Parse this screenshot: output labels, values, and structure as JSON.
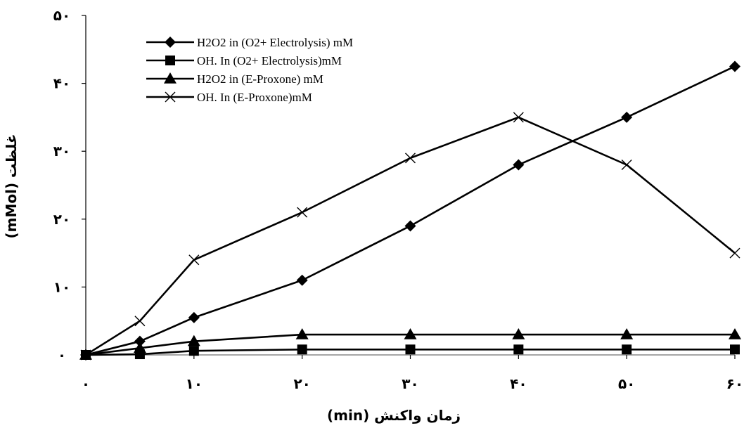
{
  "chart_data": {
    "type": "line",
    "xlabel": "زمان واکنش (min)",
    "ylabel": "غلظت (mMol)",
    "xlim": [
      0,
      60
    ],
    "ylim": [
      0,
      50
    ],
    "x_ticks": [
      0,
      10,
      20,
      30,
      40,
      50,
      60
    ],
    "y_ticks": [
      0,
      10,
      20,
      30,
      40,
      50
    ],
    "x_tick_labels": [
      "۰",
      "۱۰",
      "۲۰",
      "۳۰",
      "۴۰",
      "۵۰",
      "۶۰"
    ],
    "y_tick_labels": [
      "۰",
      "۱۰",
      "۲۰",
      "۳۰",
      "۴۰",
      "۵۰"
    ],
    "grid": false,
    "legend_position": "top-left",
    "series": [
      {
        "name": "H2O2 in (O2+ Electrolysis) mM",
        "marker": "diamond",
        "x": [
          0,
          5,
          10,
          20,
          30,
          40,
          50,
          60
        ],
        "values": [
          0,
          2,
          5.5,
          11,
          19,
          28,
          35,
          42.5
        ]
      },
      {
        "name": "OH. In (O2+ Electrolysis)mM",
        "marker": "square",
        "x": [
          0,
          5,
          10,
          20,
          30,
          40,
          50,
          60
        ],
        "values": [
          0,
          0.1,
          0.6,
          0.8,
          0.8,
          0.8,
          0.8,
          0.8
        ]
      },
      {
        "name": "H2O2 in (E-Proxone) mM",
        "marker": "triangle",
        "x": [
          0,
          5,
          10,
          20,
          30,
          40,
          50,
          60
        ],
        "values": [
          0,
          1,
          2,
          3,
          3,
          3,
          3,
          3
        ]
      },
      {
        "name": "OH. In (E-Proxone)mM",
        "marker": "x",
        "x": [
          0,
          5,
          10,
          20,
          30,
          40,
          50,
          60
        ],
        "values": [
          0,
          5,
          14,
          21,
          29,
          35,
          28,
          15
        ]
      }
    ]
  }
}
